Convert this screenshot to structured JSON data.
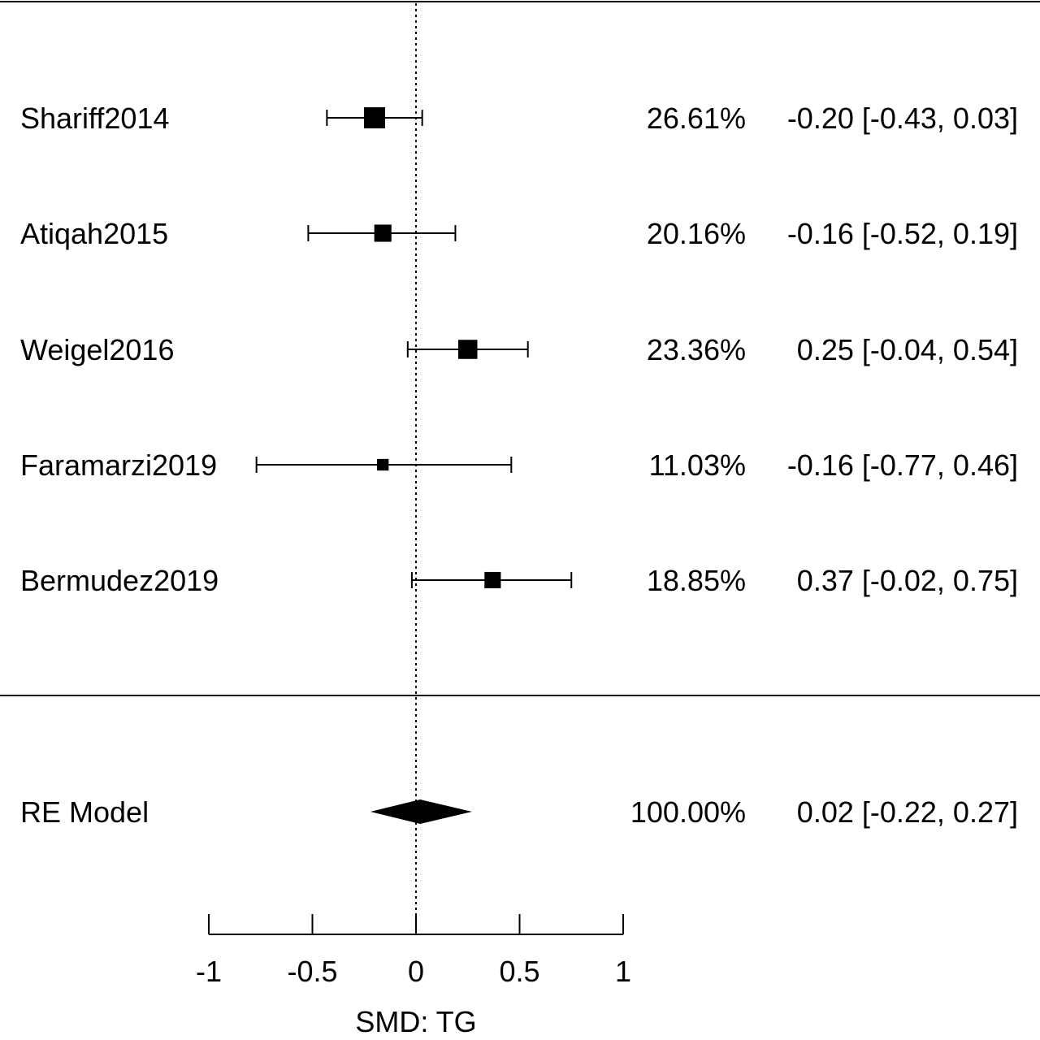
{
  "chart_data": {
    "type": "forest",
    "studies": [
      {
        "name": "Shariff2014",
        "weight": "26.61%",
        "estimate": -0.2,
        "ci_low": -0.43,
        "ci_high": 0.03,
        "ci_text": "-0.20 [-0.43, 0.03]",
        "weight_value": 26.61
      },
      {
        "name": "Atiqah2015",
        "weight": "20.16%",
        "estimate": -0.16,
        "ci_low": -0.52,
        "ci_high": 0.19,
        "ci_text": "-0.16 [-0.52, 0.19]",
        "weight_value": 20.16
      },
      {
        "name": "Weigel2016",
        "weight": "23.36%",
        "estimate": 0.25,
        "ci_low": -0.04,
        "ci_high": 0.54,
        "ci_text": "0.25 [-0.04, 0.54]",
        "weight_value": 23.36
      },
      {
        "name": "Faramarzi2019",
        "weight": "11.03%",
        "estimate": -0.16,
        "ci_low": -0.77,
        "ci_high": 0.46,
        "ci_text": "-0.16 [-0.77, 0.46]",
        "weight_value": 11.03
      },
      {
        "name": "Bermudez2019",
        "weight": "18.85%",
        "estimate": 0.37,
        "ci_low": -0.02,
        "ci_high": 0.75,
        "ci_text": "0.37 [-0.02, 0.75]",
        "weight_value": 18.85
      }
    ],
    "summary": {
      "name": "RE Model",
      "weight": "100.00%",
      "estimate": 0.02,
      "ci_low": -0.22,
      "ci_high": 0.27,
      "ci_text": "0.02 [-0.22, 0.27]"
    },
    "xaxis": {
      "label": "SMD: TG",
      "ticks": [
        -1,
        -0.5,
        0,
        0.5,
        1
      ],
      "tick_labels": [
        "-1",
        "-0.5",
        "0",
        "0.5",
        "1"
      ],
      "range": [
        -1,
        1
      ]
    },
    "reference_line": 0,
    "colors": {
      "marker": "#000000",
      "lines": "#000000",
      "background": "#ffffff"
    }
  }
}
